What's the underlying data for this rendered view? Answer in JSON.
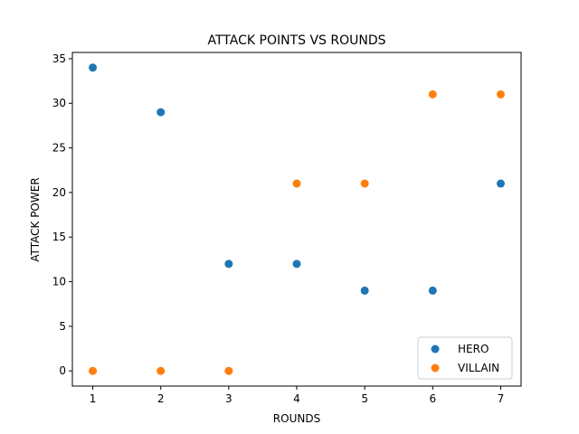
{
  "chart_data": {
    "type": "scatter",
    "title": "ATTACK POINTS VS ROUNDS",
    "xlabel": "ROUNDS",
    "ylabel": "ATTACK POWER",
    "xlim": [
      0.7,
      7.3
    ],
    "ylim": [
      -1.7,
      35.7
    ],
    "xticks": [
      1,
      2,
      3,
      4,
      5,
      6,
      7
    ],
    "yticks": [
      0,
      5,
      10,
      15,
      20,
      25,
      30,
      35
    ],
    "grid": false,
    "legend_position": "bottom-right",
    "series": [
      {
        "name": "HERO",
        "color": "#1f77b4",
        "x": [
          1,
          2,
          3,
          4,
          5,
          6,
          7
        ],
        "y": [
          34,
          29,
          12,
          12,
          9,
          9,
          21
        ]
      },
      {
        "name": "VILLAIN",
        "color": "#ff7f0e",
        "x": [
          1,
          2,
          3,
          4,
          5,
          6,
          7
        ],
        "y": [
          0,
          0,
          0,
          21,
          21,
          31,
          31
        ]
      }
    ]
  }
}
